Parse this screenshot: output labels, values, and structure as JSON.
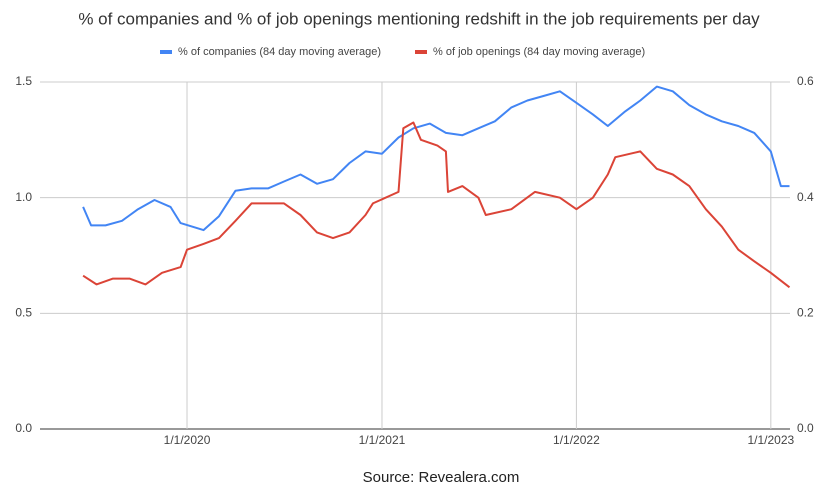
{
  "chart_data": {
    "type": "line",
    "title": "% of companies and % of job openings mentioning redshift in the job requirements per day",
    "source": "Source: Revealera.com",
    "xlim": [
      "3/31/2019",
      "2/6/2023"
    ],
    "xticks": [
      "1/1/2020",
      "1/1/2021",
      "1/1/2022",
      "1/1/2023"
    ],
    "ylim": [
      0,
      1.5
    ],
    "yticks": [
      {
        "value": 0,
        "label": "0.0"
      },
      {
        "value": 0.5,
        "label": "0.5"
      },
      {
        "value": 1,
        "label": "1.0"
      },
      {
        "value": 1.5,
        "label": "1.5"
      }
    ],
    "y2lim": [
      0,
      0.6
    ],
    "y2ticks": [
      {
        "value": 0,
        "label": "0.0"
      },
      {
        "value": 0.2,
        "label": "0.2"
      },
      {
        "value": 0.4,
        "label": "0.4"
      },
      {
        "value": 0.6,
        "label": "0.6"
      }
    ],
    "grid": true,
    "legend": "top",
    "series": [
      {
        "name": "% of companies (84 day moving average)",
        "color": "#4285f4",
        "x": [
          "6/20/2019",
          "7/5/2019",
          "8/1/2019",
          "9/1/2019",
          "10/1/2019",
          "11/1/2019",
          "12/1/2019",
          "12/20/2019",
          "2/1/2020",
          "3/1/2020",
          "4/1/2020",
          "5/1/2020",
          "6/1/2020",
          "7/1/2020",
          "8/1/2020",
          "9/1/2020",
          "10/1/2020",
          "11/1/2020",
          "12/1/2020",
          "1/1/2021",
          "2/1/2021",
          "3/1/2021",
          "4/1/2021",
          "5/1/2021",
          "6/1/2021",
          "7/1/2021",
          "8/1/2021",
          "9/1/2021",
          "10/1/2021",
          "11/1/2021",
          "12/1/2021",
          "1/1/2022",
          "2/1/2022",
          "3/1/2022",
          "4/1/2022",
          "5/1/2022",
          "6/1/2022",
          "7/1/2022",
          "8/1/2022",
          "9/1/2022",
          "10/1/2022",
          "11/1/2022",
          "12/1/2022",
          "1/1/2023",
          "1/20/2023",
          "2/5/2023"
        ],
        "values": [
          0.96,
          0.88,
          0.88,
          0.9,
          0.95,
          0.99,
          0.96,
          0.89,
          0.86,
          0.92,
          1.03,
          1.04,
          1.04,
          1.07,
          1.1,
          1.06,
          1.08,
          1.15,
          1.2,
          1.19,
          1.26,
          1.3,
          1.32,
          1.28,
          1.27,
          1.3,
          1.33,
          1.39,
          1.42,
          1.44,
          1.46,
          1.41,
          1.36,
          1.31,
          1.37,
          1.42,
          1.48,
          1.46,
          1.4,
          1.36,
          1.33,
          1.31,
          1.28,
          1.2,
          1.05,
          1.05
        ]
      },
      {
        "name": "% of job openings (84 day moving average)",
        "color": "#db4437",
        "axis": "y2",
        "x": [
          "6/20/2019",
          "7/15/2019",
          "8/15/2019",
          "9/15/2019",
          "10/15/2019",
          "11/15/2019",
          "12/20/2019",
          "1/1/2020",
          "2/1/2020",
          "3/1/2020",
          "4/1/2020",
          "5/1/2020",
          "6/1/2020",
          "7/1/2020",
          "8/1/2020",
          "9/1/2020",
          "10/1/2020",
          "11/1/2020",
          "12/1/2020",
          "12/15/2020",
          "2/1/2021",
          "2/10/2021",
          "3/1/2021",
          "3/15/2021",
          "4/15/2021",
          "5/1/2021",
          "5/5/2021",
          "6/1/2021",
          "7/1/2021",
          "7/15/2021",
          "9/1/2021",
          "10/15/2021",
          "12/1/2021",
          "1/1/2022",
          "2/1/2022",
          "3/1/2022",
          "3/15/2022",
          "5/1/2022",
          "6/1/2022",
          "7/1/2022",
          "8/1/2022",
          "9/1/2022",
          "10/1/2022",
          "11/1/2022",
          "12/1/2022",
          "1/1/2023",
          "2/5/2023"
        ],
        "values": [
          0.265,
          0.25,
          0.26,
          0.26,
          0.25,
          0.27,
          0.28,
          0.31,
          0.32,
          0.33,
          0.36,
          0.39,
          0.39,
          0.39,
          0.37,
          0.34,
          0.33,
          0.34,
          0.37,
          0.39,
          0.41,
          0.52,
          0.53,
          0.5,
          0.49,
          0.48,
          0.41,
          0.42,
          0.4,
          0.37,
          0.38,
          0.41,
          0.4,
          0.38,
          0.4,
          0.44,
          0.47,
          0.48,
          0.45,
          0.44,
          0.42,
          0.38,
          0.35,
          0.31,
          0.29,
          0.27,
          0.245
        ]
      }
    ]
  }
}
